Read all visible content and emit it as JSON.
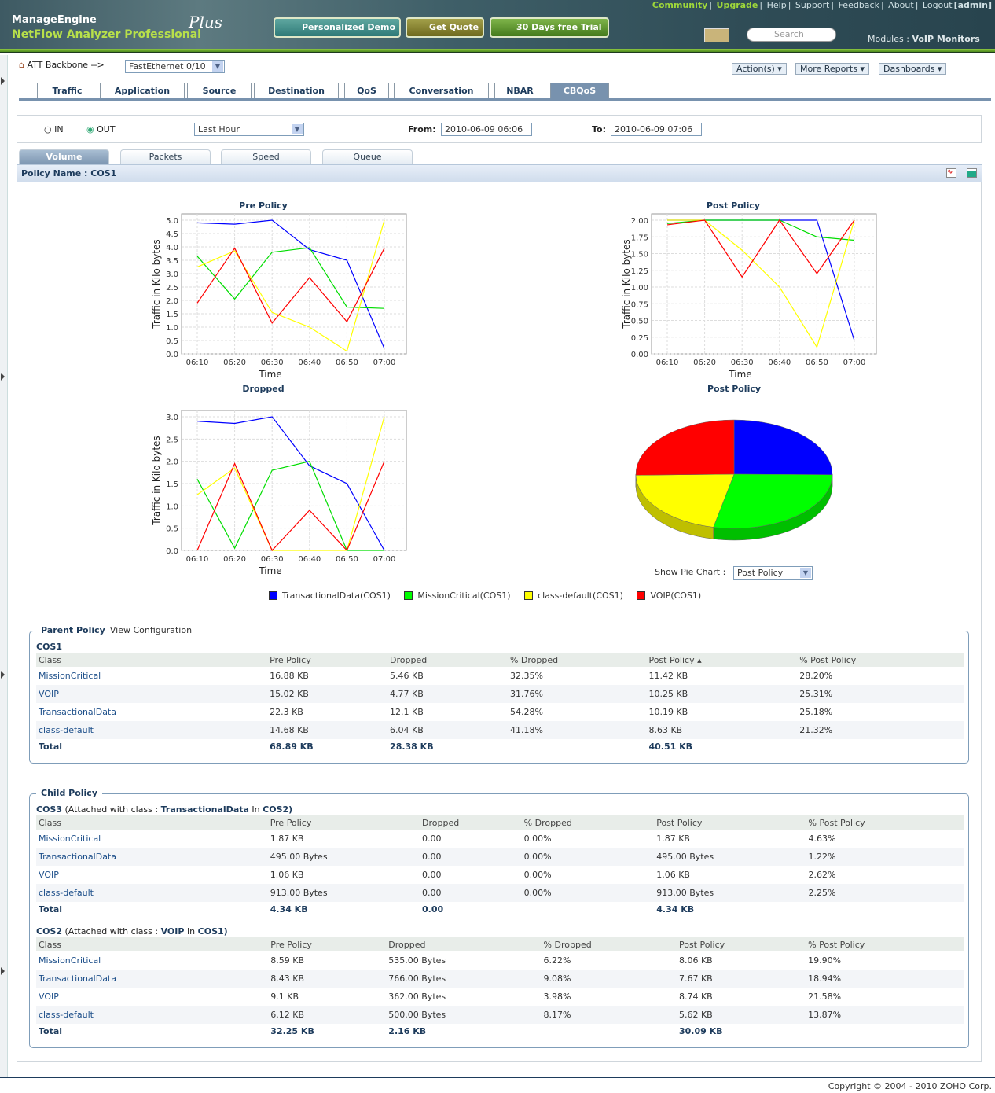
{
  "header": {
    "brand": "ManageEngine",
    "product": "NetFlow Analyzer Professional",
    "edition": "Plus",
    "buttons": [
      "Personalized Demo",
      "Get Quote",
      "30 Days free Trial"
    ],
    "links": [
      "Community",
      "Upgrade",
      "Help",
      "Support",
      "Feedback",
      "About",
      "Logout"
    ],
    "user": "[admin]",
    "search_placeholder": "Search",
    "modules_label": "Modules :",
    "modules_value": "VoIP Monitors"
  },
  "breadcrumb": {
    "device": "ATT Backbone -->",
    "interface": "FastEthernet 0/10"
  },
  "actions": [
    "Action(s) ▾",
    "More Reports ▾",
    "Dashboards ▾"
  ],
  "tabs": [
    "Traffic",
    "Application",
    "Source",
    "Destination",
    "QoS",
    "Conversation",
    "NBAR",
    "CBQoS"
  ],
  "active_tab": "CBQoS",
  "filter": {
    "in": "IN",
    "out": "OUT",
    "selected_direction": "OUT",
    "period": "Last Hour",
    "from_label": "From:",
    "from": "2010-06-09 06:06",
    "to_label": "To:",
    "to": "2010-06-09 07:06"
  },
  "subtabs": [
    "Volume",
    "Packets",
    "Speed",
    "Queue"
  ],
  "policy_name": "Policy Name : COS1",
  "pie_selector": {
    "label": "Show Pie Chart :",
    "value": "Post Policy"
  },
  "colors": {
    "TransactionalData(COS1)": "#0000ff",
    "MissionCritical(COS1)": "#00ff00",
    "class-default(COS1)": "#ffff00",
    "VOIP(COS1)": "#ff0000"
  },
  "chart_data": [
    {
      "type": "line",
      "title": "Pre Policy",
      "xlabel": "Time",
      "ylabel": "Traffic in Kilo bytes",
      "x": [
        "06:10",
        "06:20",
        "06:30",
        "06:40",
        "06:50",
        "07:00"
      ],
      "ylim": [
        0,
        5
      ],
      "yticks": [
        "0.0",
        "0.5",
        "1.0",
        "1.5",
        "2.0",
        "2.5",
        "3.0",
        "3.5",
        "4.0",
        "4.5",
        "5.0"
      ],
      "series": [
        {
          "name": "TransactionalData(COS1)",
          "color": "#0000ff",
          "values": [
            4.9,
            4.85,
            5.0,
            3.9,
            3.5,
            0.2
          ]
        },
        {
          "name": "MissionCritical(COS1)",
          "color": "#00dd00",
          "values": [
            3.65,
            2.05,
            3.8,
            3.97,
            1.75,
            1.7
          ]
        },
        {
          "name": "class-default(COS1)",
          "color": "#ffff00",
          "values": [
            3.25,
            3.85,
            1.55,
            1.0,
            0.1,
            5.0
          ]
        },
        {
          "name": "VOIP(COS1)",
          "color": "#ff0000",
          "values": [
            1.9,
            3.95,
            1.15,
            2.85,
            1.2,
            3.95
          ]
        }
      ]
    },
    {
      "type": "line",
      "title": "Post Policy",
      "xlabel": "Time",
      "ylabel": "Traffic in Kilo bytes",
      "x": [
        "06:10",
        "06:20",
        "06:30",
        "06:40",
        "06:50",
        "07:00"
      ],
      "ylim": [
        0,
        2
      ],
      "yticks": [
        "0.00",
        "0.25",
        "0.50",
        "0.75",
        "1.00",
        "1.25",
        "1.50",
        "1.75",
        "2.00"
      ],
      "series": [
        {
          "name": "TransactionalData(COS1)",
          "color": "#0000ff",
          "values": [
            2.0,
            2.0,
            2.0,
            2.0,
            2.0,
            0.2
          ]
        },
        {
          "name": "MissionCritical(COS1)",
          "color": "#00dd00",
          "values": [
            1.95,
            2.0,
            2.0,
            2.0,
            1.75,
            1.7
          ]
        },
        {
          "name": "class-default(COS1)",
          "color": "#ffff00",
          "values": [
            2.0,
            2.0,
            1.55,
            1.0,
            0.1,
            2.0
          ]
        },
        {
          "name": "VOIP(COS1)",
          "color": "#ff0000",
          "values": [
            1.93,
            2.0,
            1.15,
            2.0,
            1.2,
            2.0
          ]
        }
      ]
    },
    {
      "type": "line",
      "title": "Dropped",
      "xlabel": "Time",
      "ylabel": "Traffic in Kilo bytes",
      "x": [
        "06:10",
        "06:20",
        "06:30",
        "06:40",
        "06:50",
        "07:00"
      ],
      "ylim": [
        0,
        3
      ],
      "yticks": [
        "0.0",
        "0.5",
        "1.0",
        "1.5",
        "2.0",
        "2.5",
        "3.0"
      ],
      "series": [
        {
          "name": "TransactionalData(COS1)",
          "color": "#0000ff",
          "values": [
            2.9,
            2.85,
            3.0,
            1.9,
            1.5,
            0
          ]
        },
        {
          "name": "MissionCritical(COS1)",
          "color": "#00dd00",
          "values": [
            1.6,
            0.05,
            1.8,
            2.0,
            0,
            0
          ]
        },
        {
          "name": "class-default(COS1)",
          "color": "#ffff00",
          "values": [
            1.25,
            1.85,
            0,
            0,
            0,
            3.0
          ]
        },
        {
          "name": "VOIP(COS1)",
          "color": "#ff0000",
          "values": [
            0,
            1.95,
            0,
            0.9,
            0,
            2.0
          ]
        }
      ]
    },
    {
      "type": "pie",
      "title": "Post Policy",
      "slices": [
        {
          "name": "TransactionalData(COS1)",
          "color": "#0000ff",
          "value": 25.18
        },
        {
          "name": "MissionCritical(COS1)",
          "color": "#00ff00",
          "value": 28.2
        },
        {
          "name": "class-default(COS1)",
          "color": "#ffff00",
          "value": 21.32
        },
        {
          "name": "VOIP(COS1)",
          "color": "#ff0000",
          "value": 25.31
        }
      ]
    }
  ],
  "legend": [
    "TransactionalData(COS1)",
    "MissionCritical(COS1)",
    "class-default(COS1)",
    "VOIP(COS1)"
  ],
  "parent": {
    "title": "Parent Policy",
    "link": "View Configuration",
    "name": "COS1",
    "headers": [
      "Class",
      "Pre Policy",
      "Dropped",
      "% Dropped",
      "Post Policy ▴",
      "% Post Policy"
    ],
    "rows": [
      [
        "MissionCritical",
        "16.88 KB",
        "5.46 KB",
        "32.35%",
        "11.42 KB",
        "28.20%"
      ],
      [
        "VOIP",
        "15.02 KB",
        "4.77 KB",
        "31.76%",
        "10.25 KB",
        "25.31%"
      ],
      [
        "TransactionalData",
        "22.3 KB",
        "12.1 KB",
        "54.28%",
        "10.19 KB",
        "25.18%"
      ],
      [
        "class-default",
        "14.68 KB",
        "6.04 KB",
        "41.18%",
        "8.63 KB",
        "21.32%"
      ]
    ],
    "total": [
      "Total",
      "68.89 KB",
      "28.38 KB",
      "",
      "40.51 KB",
      ""
    ]
  },
  "child": {
    "title": "Child Policy",
    "groups": [
      {
        "name": "COS3",
        "attached": "(Attached with class :",
        "cls": "TransactionalData",
        "in": "In",
        "parent": "COS2)",
        "headers": [
          "Class",
          "Pre Policy",
          "Dropped",
          "% Dropped",
          "Post Policy",
          "% Post Policy"
        ],
        "rows": [
          [
            "MissionCritical",
            "1.87 KB",
            "0.00",
            "0.00%",
            "1.87 KB",
            "4.63%"
          ],
          [
            "TransactionalData",
            "495.00 Bytes",
            "0.00",
            "0.00%",
            "495.00 Bytes",
            "1.22%"
          ],
          [
            "VOIP",
            "1.06 KB",
            "0.00",
            "0.00%",
            "1.06 KB",
            "2.62%"
          ],
          [
            "class-default",
            "913.00 Bytes",
            "0.00",
            "0.00%",
            "913.00 Bytes",
            "2.25%"
          ]
        ],
        "total": [
          "Total",
          "4.34 KB",
          "0.00",
          "",
          "4.34 KB",
          ""
        ]
      },
      {
        "name": "COS2",
        "attached": "(Attached with class :",
        "cls": "VOIP",
        "in": "In",
        "parent": "COS1)",
        "headers": [
          "Class",
          "Pre Policy",
          "Dropped",
          "% Dropped",
          "Post Policy",
          "% Post Policy"
        ],
        "rows": [
          [
            "MissionCritical",
            "8.59 KB",
            "535.00 Bytes",
            "6.22%",
            "8.06 KB",
            "19.90%"
          ],
          [
            "TransactionalData",
            "8.43 KB",
            "766.00 Bytes",
            "9.08%",
            "7.67 KB",
            "18.94%"
          ],
          [
            "VOIP",
            "9.1 KB",
            "362.00 Bytes",
            "3.98%",
            "8.74 KB",
            "21.58%"
          ],
          [
            "class-default",
            "6.12 KB",
            "500.00 Bytes",
            "8.17%",
            "5.62 KB",
            "13.87%"
          ]
        ],
        "total": [
          "Total",
          "32.25 KB",
          "2.16 KB",
          "",
          "30.09 KB",
          ""
        ]
      }
    ]
  },
  "footer": "Copyright © 2004 - 2010 ZOHO Corp."
}
